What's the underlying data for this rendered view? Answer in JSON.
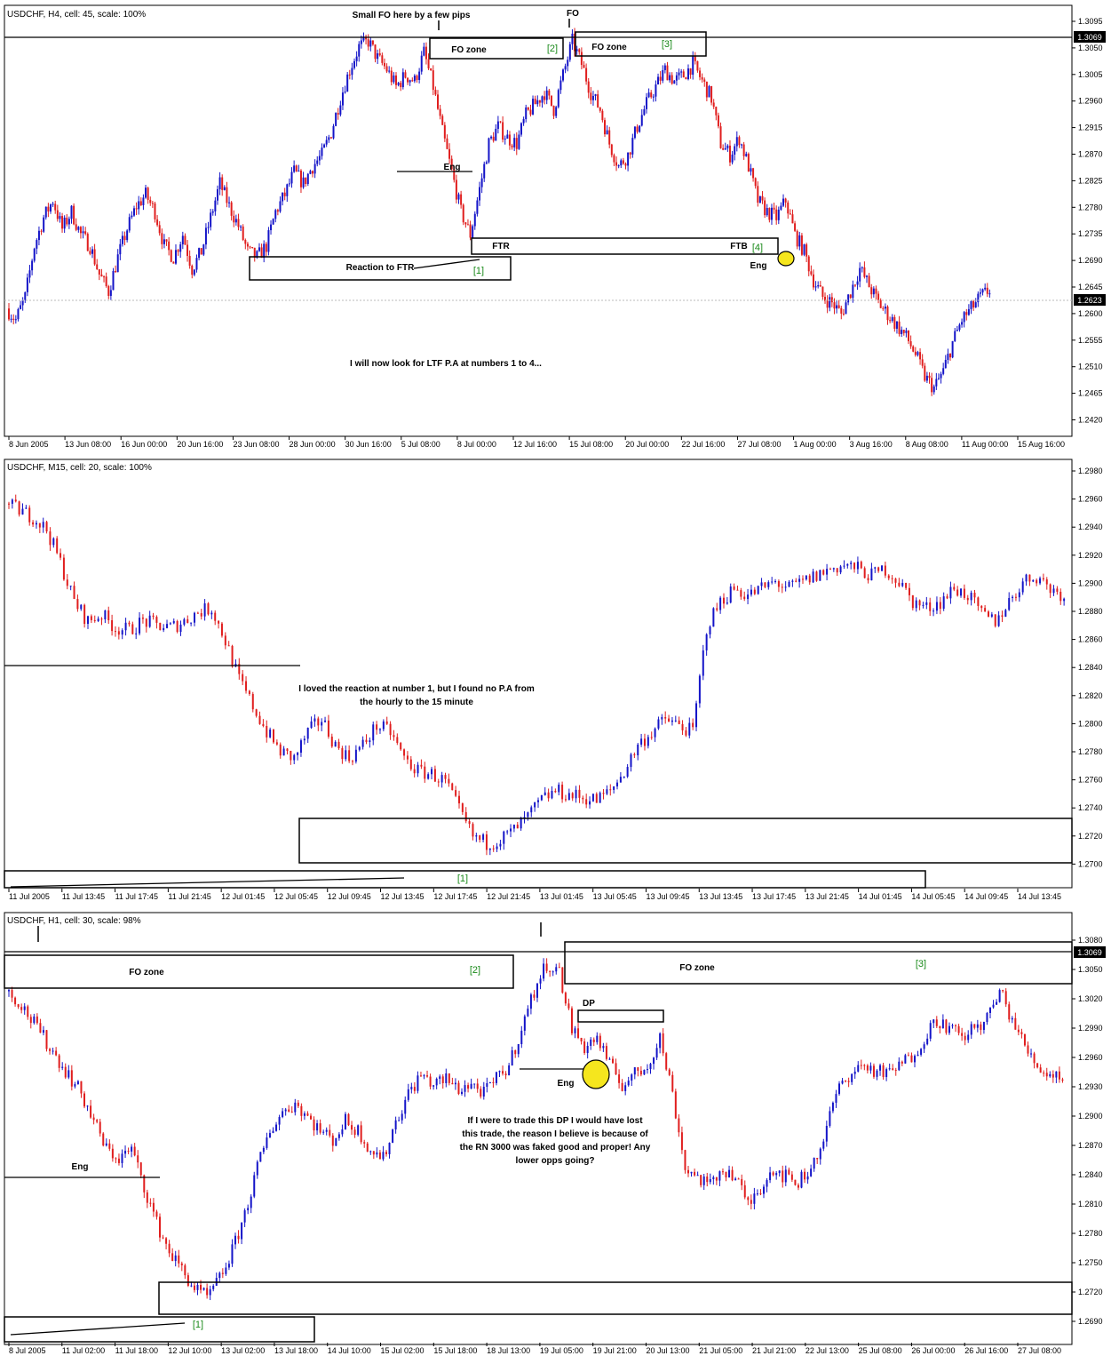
{
  "chart_data": [
    {
      "type": "candlestick",
      "title": "USDCHF, H4, cell: 45, scale: 100%",
      "ylim": [
        1.2395,
        1.3095
      ],
      "y_ticks": [
        "1.3095",
        "1.3050",
        "1.3005",
        "1.2960",
        "1.2915",
        "1.2870",
        "1.2825",
        "1.2780",
        "1.2735",
        "1.2690",
        "1.2645",
        "1.2600",
        "1.2555",
        "1.2510",
        "1.2465",
        "1.2420"
      ],
      "x_ticks": [
        "8 Jun 2005",
        "13 Jun 08:00",
        "16 Jun 00:00",
        "20 Jun 16:00",
        "23 Jun 08:00",
        "28 Jun 00:00",
        "30 Jun 16:00",
        "5 Jul 08:00",
        "8 Jul 00:00",
        "12 Jul 16:00",
        "15 Jul 08:00",
        "20 Jul 00:00",
        "22 Jul 16:00",
        "27 Jul 08:00",
        "1 Aug 00:00",
        "3 Aug 16:00",
        "8 Aug 08:00",
        "11 Aug 00:00",
        "15 Aug 16:00"
      ],
      "hline_labels": [
        "1.3069",
        "1.2623"
      ],
      "hline_values": [
        1.3069,
        1.2623
      ],
      "close_path": [
        1.259,
        1.257,
        1.261,
        1.27,
        1.275,
        1.278,
        1.273,
        1.276,
        1.272,
        1.27,
        1.265,
        1.262,
        1.268,
        1.273,
        1.277,
        1.279,
        1.276,
        1.27,
        1.268,
        1.272,
        1.266,
        1.269,
        1.275,
        1.281,
        1.277,
        1.2735,
        1.269,
        1.268,
        1.27,
        1.276,
        1.279,
        1.283,
        1.281,
        1.284,
        1.286,
        1.29,
        1.296,
        1.301,
        1.305,
        1.306,
        1.303,
        1.301,
        1.298,
        1.3,
        1.299,
        1.304,
        1.298,
        1.29,
        1.283,
        1.276,
        1.272,
        1.28,
        1.288,
        1.291,
        1.289,
        1.288,
        1.293,
        1.295,
        1.297,
        1.294,
        1.3,
        1.306,
        1.302,
        1.297,
        1.294,
        1.288,
        1.284,
        1.286,
        1.291,
        1.295,
        1.298,
        1.301,
        1.299,
        1.3,
        1.302,
        1.299,
        1.296,
        1.288,
        1.286,
        1.289,
        1.284,
        1.278,
        1.276,
        1.275,
        1.278,
        1.272,
        1.269,
        1.264,
        1.261,
        1.26,
        1.258,
        1.262,
        1.266,
        1.263,
        1.26,
        1.258,
        1.256,
        1.254,
        1.251,
        1.247,
        1.245,
        1.248,
        1.253,
        1.257,
        1.259,
        1.261,
        1.2623
      ],
      "annotations": [
        "Small FO here by a few pips",
        "FO",
        "FO zone",
        "[2]",
        "FO zone",
        "[3]",
        "Eng",
        "FTR",
        "FTB",
        "[4]",
        "Eng",
        "Reaction to FTR",
        "[1]",
        "I will now look for LTF P.A at numbers 1 to 4..."
      ]
    },
    {
      "type": "candlestick",
      "title": "USDCHF, M15, cell: 20, scale: 100%",
      "ylim": [
        1.269,
        1.299
      ],
      "y_ticks": [
        "1.2980",
        "1.2960",
        "1.2940",
        "1.2920",
        "1.2900",
        "1.2880",
        "1.2860",
        "1.2840",
        "1.2820",
        "1.2800",
        "1.2780",
        "1.2760",
        "1.2740",
        "1.2720",
        "1.2700"
      ],
      "x_ticks": [
        "11 Jul 2005",
        "11 Jul 13:45",
        "11 Jul 17:45",
        "11 Jul 21:45",
        "12 Jul 01:45",
        "12 Jul 05:45",
        "12 Jul 09:45",
        "12 Jul 13:45",
        "12 Jul 17:45",
        "12 Jul 21:45",
        "13 Jul 01:45",
        "13 Jul 05:45",
        "13 Jul 09:45",
        "13 Jul 13:45",
        "13 Jul 17:45",
        "13 Jul 21:45",
        "14 Jul 01:45",
        "14 Jul 05:45",
        "14 Jul 09:45",
        "14 Jul 13:45"
      ],
      "close_path": [
        1.2965,
        1.296,
        1.2955,
        1.2945,
        1.292,
        1.289,
        1.2875,
        1.288,
        1.287,
        1.2868,
        1.2875,
        1.2872,
        1.287,
        1.2875,
        1.2882,
        1.2885,
        1.286,
        1.283,
        1.281,
        1.279,
        1.2775,
        1.277,
        1.279,
        1.28,
        1.278,
        1.277,
        1.278,
        1.2795,
        1.279,
        1.277,
        1.276,
        1.2758,
        1.2752,
        1.273,
        1.271,
        1.2705,
        1.2708,
        1.2715,
        1.2725,
        1.2738,
        1.2745,
        1.2742,
        1.274,
        1.2738,
        1.2745,
        1.276,
        1.278,
        1.279,
        1.28,
        1.2795,
        1.279,
        1.287,
        1.289,
        1.29,
        1.2895,
        1.29,
        1.2905,
        1.29,
        1.2905,
        1.291,
        1.2915,
        1.2918,
        1.2915,
        1.291,
        1.2915,
        1.2905,
        1.289,
        1.2885,
        1.289,
        1.29,
        1.2895,
        1.288,
        1.2875,
        1.289,
        1.2905,
        1.291,
        1.29,
        1.2895
      ],
      "annotations": [
        "I loved the reaction at number 1, but I found no P.A from",
        "the hourly to the 15 minute",
        "[1]"
      ]
    },
    {
      "type": "candlestick",
      "title": "USDCHF, H1, cell: 30, scale: 98%",
      "ylim": [
        1.268,
        1.3095
      ],
      "y_ticks": [
        "1.3080",
        "1.3050",
        "1.3020",
        "1.2990",
        "1.2960",
        "1.2930",
        "1.2900",
        "1.2870",
        "1.2840",
        "1.2810",
        "1.2780",
        "1.2750",
        "1.2720",
        "1.2690"
      ],
      "x_ticks": [
        "8 Jul 2005",
        "11 Jul 02:00",
        "11 Jul 18:00",
        "12 Jul 10:00",
        "13 Jul 02:00",
        "13 Jul 18:00",
        "14 Jul 10:00",
        "15 Jul 02:00",
        "15 Jul 18:00",
        "18 Jul 13:00",
        "19 Jul 05:00",
        "19 Jul 21:00",
        "20 Jul 13:00",
        "21 Jul 05:00",
        "21 Jul 21:00",
        "22 Jul 13:00",
        "25 Jul 08:00",
        "26 Jul 00:00",
        "26 Jul 16:00",
        "27 Jul 08:00"
      ],
      "hline_labels": [
        "1.3069"
      ],
      "hline_values": [
        1.3069
      ],
      "close_path": [
        1.304,
        1.303,
        1.301,
        1.299,
        1.297,
        1.295,
        1.293,
        1.29,
        1.287,
        1.286,
        1.287,
        1.283,
        1.279,
        1.276,
        1.274,
        1.272,
        1.271,
        1.273,
        1.276,
        1.28,
        1.285,
        1.289,
        1.291,
        1.292,
        1.2905,
        1.289,
        1.288,
        1.29,
        1.289,
        1.287,
        1.286,
        1.29,
        1.293,
        1.295,
        1.294,
        1.2945,
        1.2935,
        1.294,
        1.293,
        1.2945,
        1.296,
        1.3,
        1.304,
        1.307,
        1.306,
        1.3,
        1.298,
        1.299,
        1.296,
        1.294,
        1.295,
        1.296,
        1.299,
        1.293,
        1.285,
        1.284,
        1.283,
        1.285,
        1.284,
        1.281,
        1.283,
        1.285,
        1.284,
        1.2835,
        1.285,
        1.288,
        1.293,
        1.295,
        1.296,
        1.2955,
        1.295,
        1.296,
        1.297,
        1.299,
        1.301,
        1.3,
        1.299,
        1.3,
        1.301,
        1.304,
        1.301,
        1.298,
        1.296,
        1.295,
        1.295
      ],
      "annotations": [
        "FO zone",
        "[2]",
        "FO zone",
        "[3]",
        "DP",
        "Eng",
        "Eng",
        "[1]",
        "If I were to trade this DP I would have lost",
        "this trade, the reason I believe is because of",
        "the RN 3000 was faked good and proper! Any",
        "lower opps going?"
      ]
    }
  ],
  "colors": {
    "bull": "#1414c8",
    "bear": "#e01e1e",
    "highlight": "#f5e61e",
    "green_label": "#1a8a1a"
  }
}
